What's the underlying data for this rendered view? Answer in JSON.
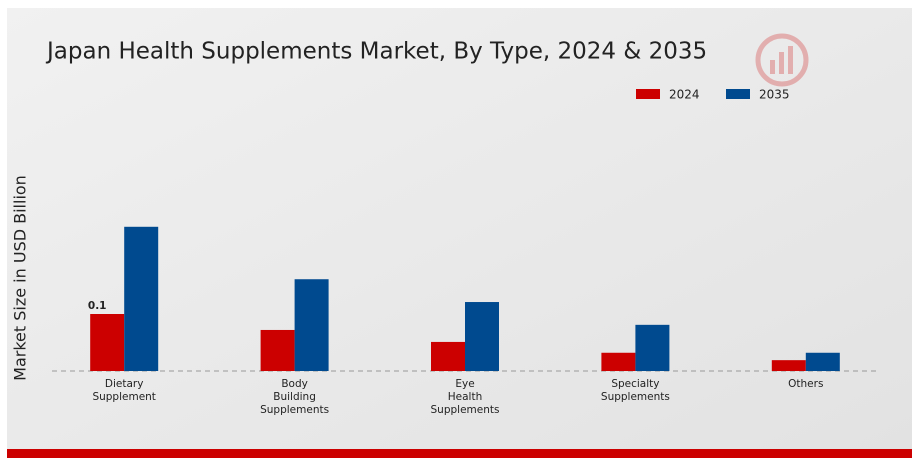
{
  "chart_data": {
    "type": "bar",
    "title": "Japan Health Supplements Market, By Type, 2024 & 2035",
    "y_label": "Market Size in USD Billion",
    "categories": [
      "Dietary\nSupplement",
      "Body\nBuilding\nSupplements",
      "Eye\nHealth\nSupplements",
      "Specialty\nSupplements",
      "Others"
    ],
    "series": [
      {
        "name": "2024",
        "color": "#cc0000",
        "values": [
          0.1,
          0.072,
          0.051,
          0.032,
          0.019
        ],
        "value_labels": [
          "0.1",
          null,
          null,
          null,
          null
        ]
      },
      {
        "name": "2035",
        "color": "#004a8f",
        "values": [
          0.253,
          0.161,
          0.121,
          0.081,
          0.032
        ]
      }
    ],
    "ylim": [
      0,
      0.3
    ]
  }
}
